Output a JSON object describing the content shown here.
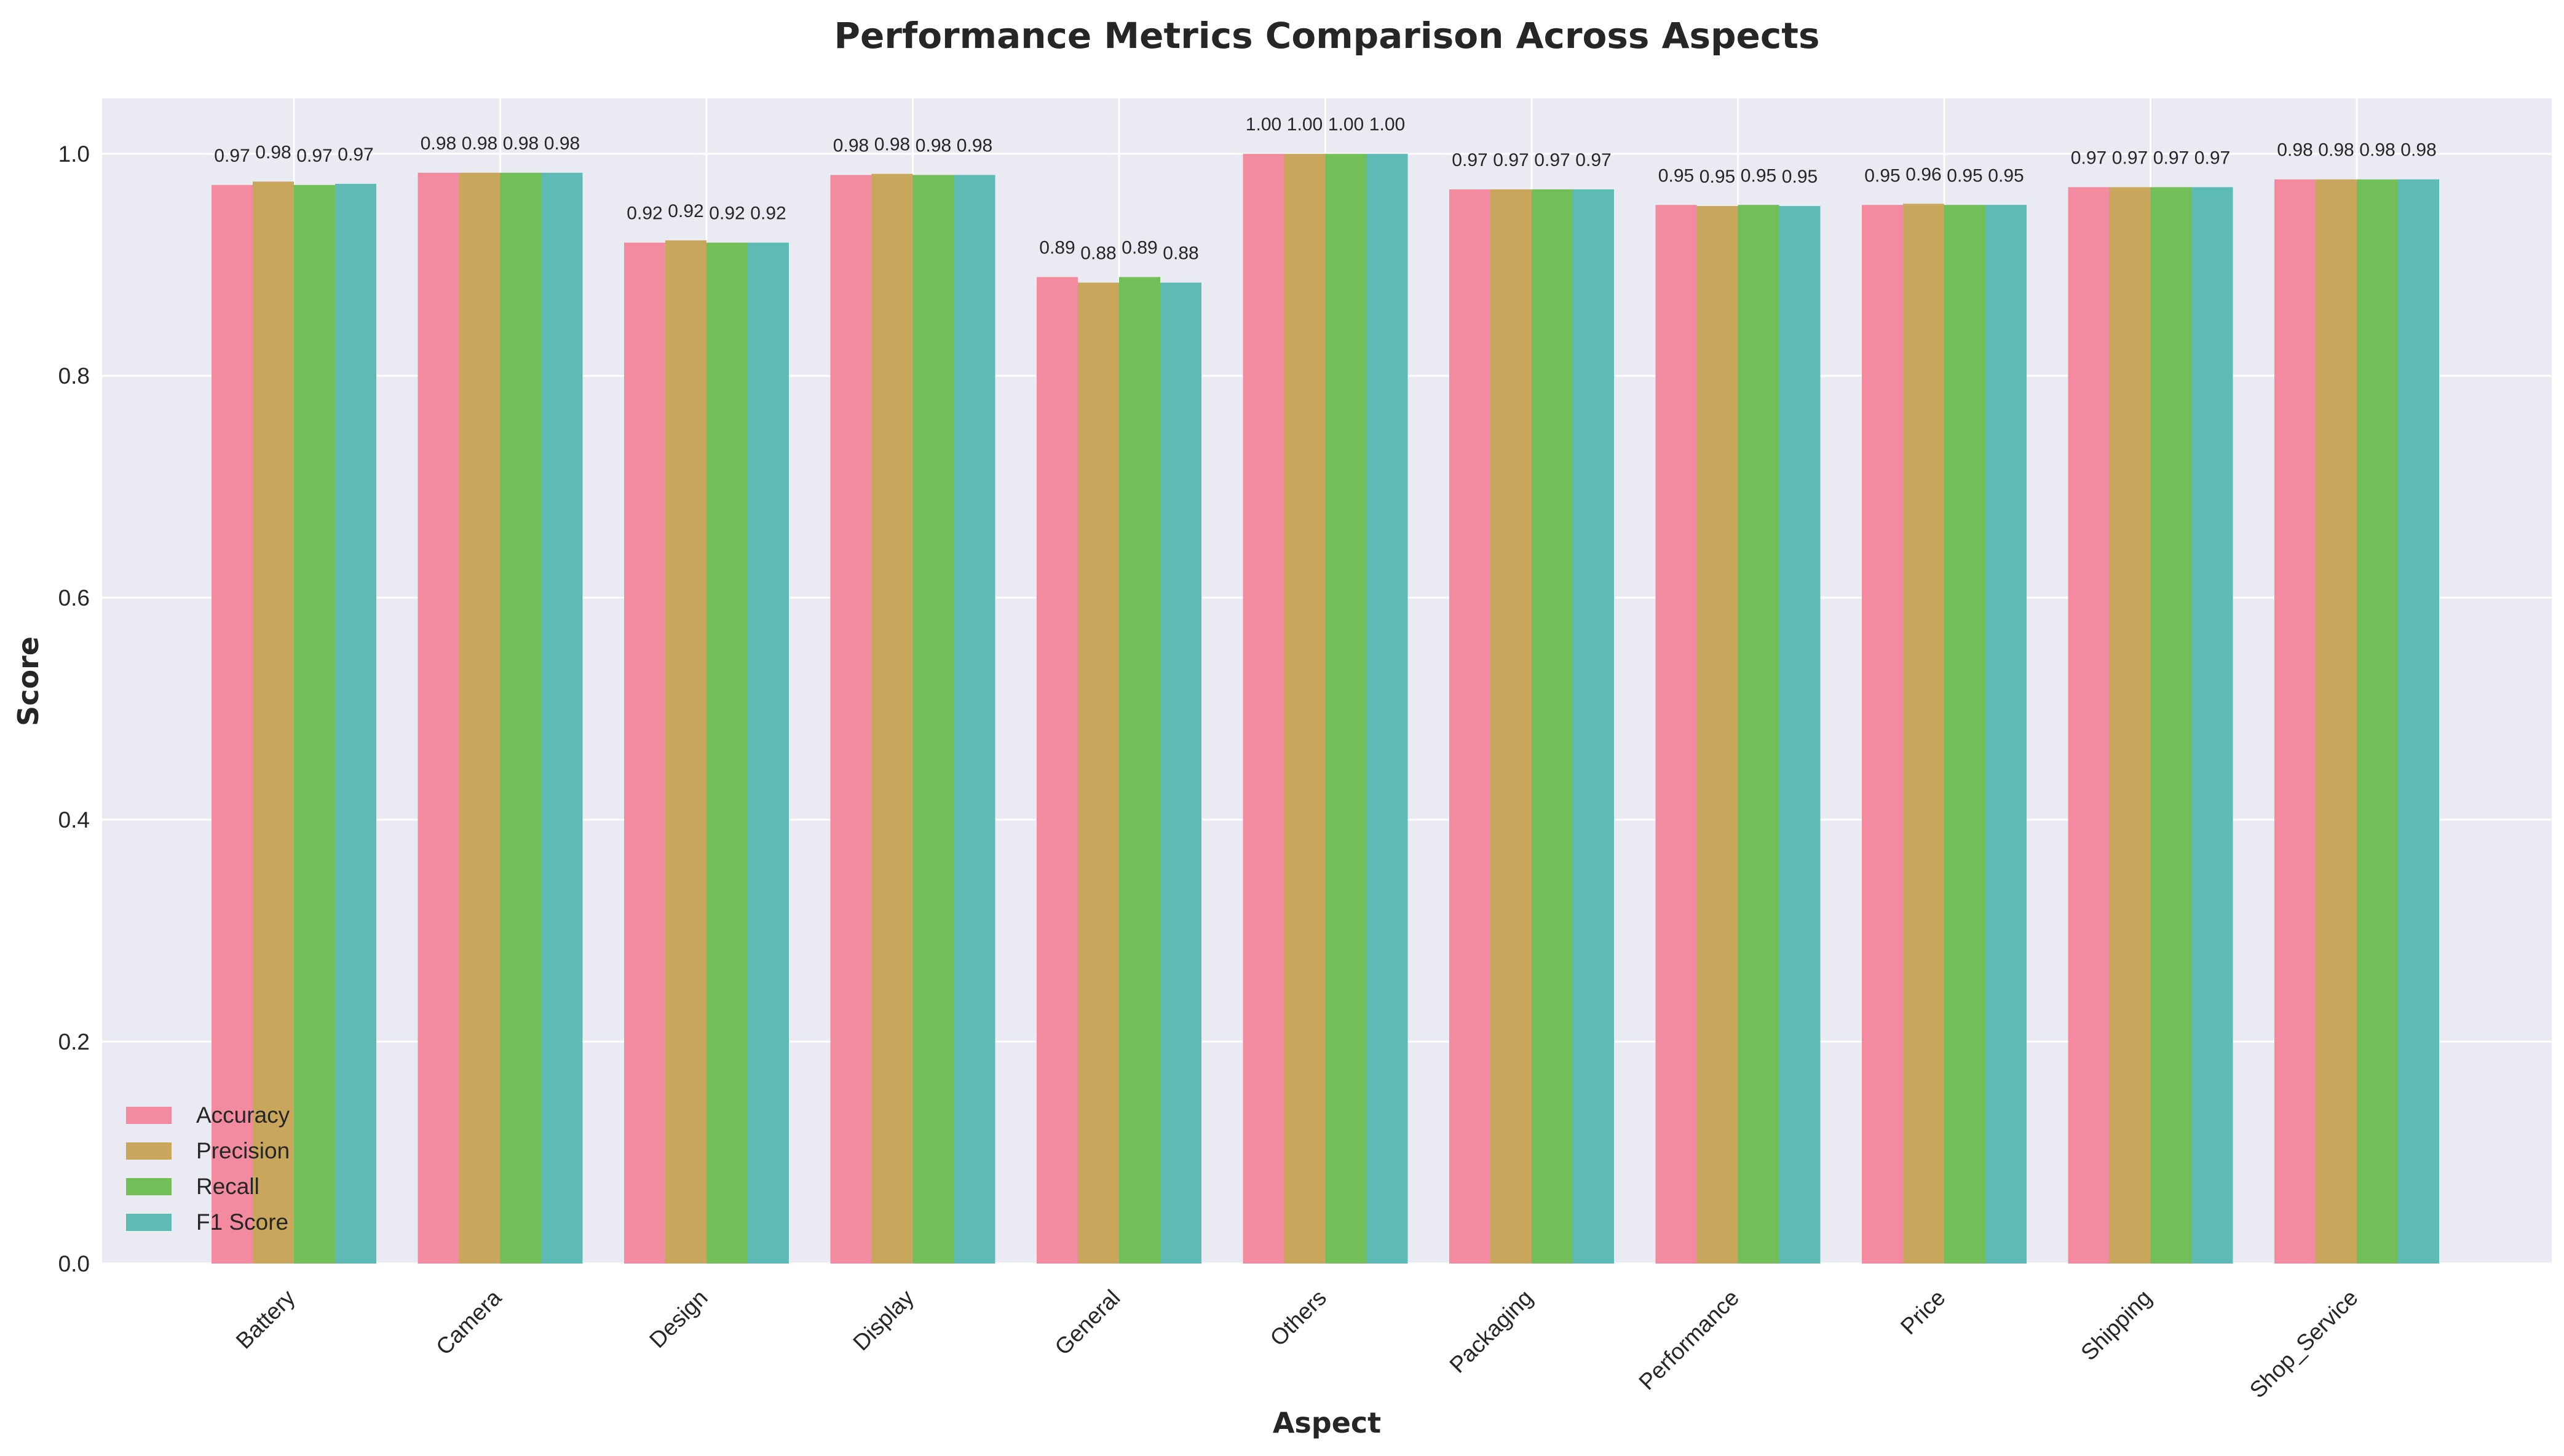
{
  "chart_data": {
    "type": "bar",
    "title": "Performance Metrics Comparison Across Aspects",
    "xlabel": "Aspect",
    "ylabel": "Score",
    "ylim": [
      0,
      1.05
    ],
    "yticks": [
      "0.0",
      "0.2",
      "0.4",
      "0.6",
      "0.8",
      "1.0"
    ],
    "grid": true,
    "legend_position": "bottom-left",
    "categories": [
      "Battery",
      "Camera",
      "Design",
      "Display",
      "General",
      "Others",
      "Packaging",
      "Performance",
      "Price",
      "Shipping",
      "Shop_Service"
    ],
    "series": [
      {
        "name": "Accuracy",
        "color": "#f28b9f",
        "values": [
          0.972,
          0.983,
          0.92,
          0.981,
          0.889,
          1.0,
          0.968,
          0.954,
          0.954,
          0.97,
          0.977
        ],
        "labels": [
          "0.97",
          "0.98",
          "0.92",
          "0.98",
          "0.89",
          "1.00",
          "0.97",
          "0.95",
          "0.95",
          "0.97",
          "0.98"
        ]
      },
      {
        "name": "Precision",
        "color": "#c8a65c",
        "values": [
          0.975,
          0.983,
          0.922,
          0.982,
          0.884,
          1.0,
          0.968,
          0.953,
          0.955,
          0.97,
          0.977
        ],
        "labels": [
          "0.98",
          "0.98",
          "0.92",
          "0.98",
          "0.88",
          "1.00",
          "0.97",
          "0.95",
          "0.96",
          "0.97",
          "0.98"
        ]
      },
      {
        "name": "Recall",
        "color": "#72bf5a",
        "values": [
          0.972,
          0.983,
          0.92,
          0.981,
          0.889,
          1.0,
          0.968,
          0.954,
          0.954,
          0.97,
          0.977
        ],
        "labels": [
          "0.97",
          "0.98",
          "0.92",
          "0.98",
          "0.89",
          "1.00",
          "0.97",
          "0.95",
          "0.95",
          "0.97",
          "0.98"
        ]
      },
      {
        "name": "F1 Score",
        "color": "#5dbab4",
        "values": [
          0.973,
          0.983,
          0.92,
          0.981,
          0.884,
          1.0,
          0.968,
          0.953,
          0.954,
          0.97,
          0.977
        ],
        "labels": [
          "0.97",
          "0.98",
          "0.92",
          "0.98",
          "0.88",
          "1.00",
          "0.97",
          "0.95",
          "0.95",
          "0.97",
          "0.98"
        ]
      }
    ]
  }
}
